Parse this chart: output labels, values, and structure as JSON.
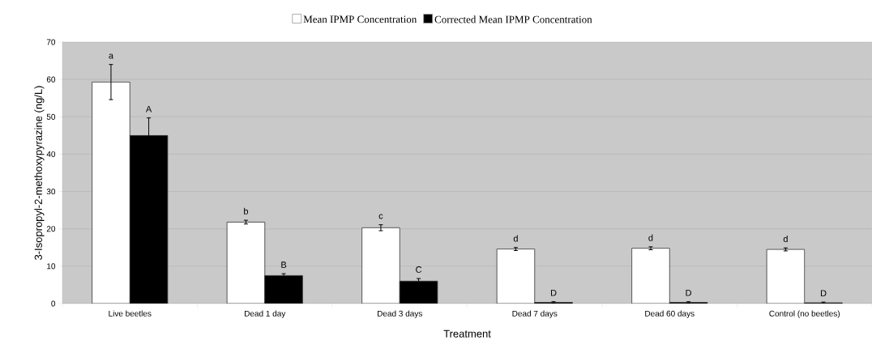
{
  "chart_data": {
    "type": "bar",
    "xlabel": "Treatment",
    "ylabel": "3-Isopropyl-2-methoxypyrazine (ng/L)",
    "categories": [
      "Live beetles",
      "Dead 1 day",
      "Dead 3 days",
      "Dead 7 days",
      "Dead 60 days",
      "Control (no beetles)"
    ],
    "series": [
      {
        "name": "Mean IPMP Concentration",
        "color": "#ffffff",
        "values": [
          59.3,
          21.8,
          20.3,
          14.6,
          14.8,
          14.5
        ],
        "errors": [
          4.7,
          0.5,
          0.8,
          0.4,
          0.4,
          0.4
        ],
        "value_labels": [
          "a",
          "b",
          "c",
          "d",
          "d",
          "d"
        ]
      },
      {
        "name": "Corrected Mean IPMP Concentration",
        "color": "#000000",
        "values": [
          45.0,
          7.5,
          6.0,
          0.3,
          0.3,
          0.2
        ],
        "errors": [
          4.7,
          0.5,
          0.7,
          0.2,
          0.2,
          0.2
        ],
        "value_labels": [
          "A",
          "B",
          "C",
          "D",
          "D",
          "D"
        ]
      }
    ],
    "ylim": [
      0,
      70
    ],
    "yticks": [
      0,
      10,
      20,
      30,
      40,
      50,
      60,
      70
    ],
    "grid": "y",
    "legend": "top"
  }
}
